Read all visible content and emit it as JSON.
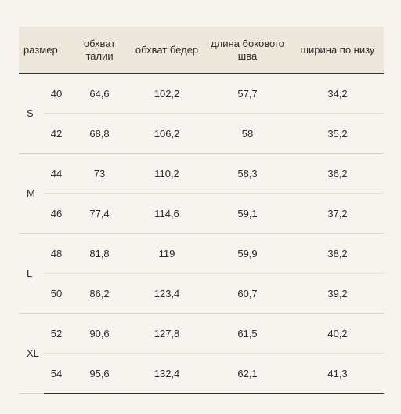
{
  "headers": {
    "size": "размер",
    "waist": "обхват талии",
    "hips": "обхват бедер",
    "side_length": "длина бокового шва",
    "bottom_width": "ширина по низу"
  },
  "groups": [
    {
      "letter": "S",
      "rows": [
        {
          "size": "40",
          "waist": "64,6",
          "hips": "102,2",
          "side_length": "57,7",
          "bottom_width": "34,2"
        },
        {
          "size": "42",
          "waist": "68,8",
          "hips": "106,2",
          "side_length": "58",
          "bottom_width": "35,2"
        }
      ]
    },
    {
      "letter": "M",
      "rows": [
        {
          "size": "44",
          "waist": "73",
          "hips": "110,2",
          "side_length": "58,3",
          "bottom_width": "36,2"
        },
        {
          "size": "46",
          "waist": "77,4",
          "hips": "114,6",
          "side_length": "59,1",
          "bottom_width": "37,2"
        }
      ]
    },
    {
      "letter": "L",
      "rows": [
        {
          "size": "48",
          "waist": "81,8",
          "hips": "119",
          "side_length": "59,9",
          "bottom_width": "38,2"
        },
        {
          "size": "50",
          "waist": "86,2",
          "hips": "123,4",
          "side_length": "60,7",
          "bottom_width": "39,2"
        }
      ]
    },
    {
      "letter": "XL",
      "rows": [
        {
          "size": "52",
          "waist": "90,6",
          "hips": "127,8",
          "side_length": "61,5",
          "bottom_width": "40,2"
        },
        {
          "size": "54",
          "waist": "95,6",
          "hips": "132,4",
          "side_length": "62,1",
          "bottom_width": "41,3"
        }
      ]
    }
  ]
}
